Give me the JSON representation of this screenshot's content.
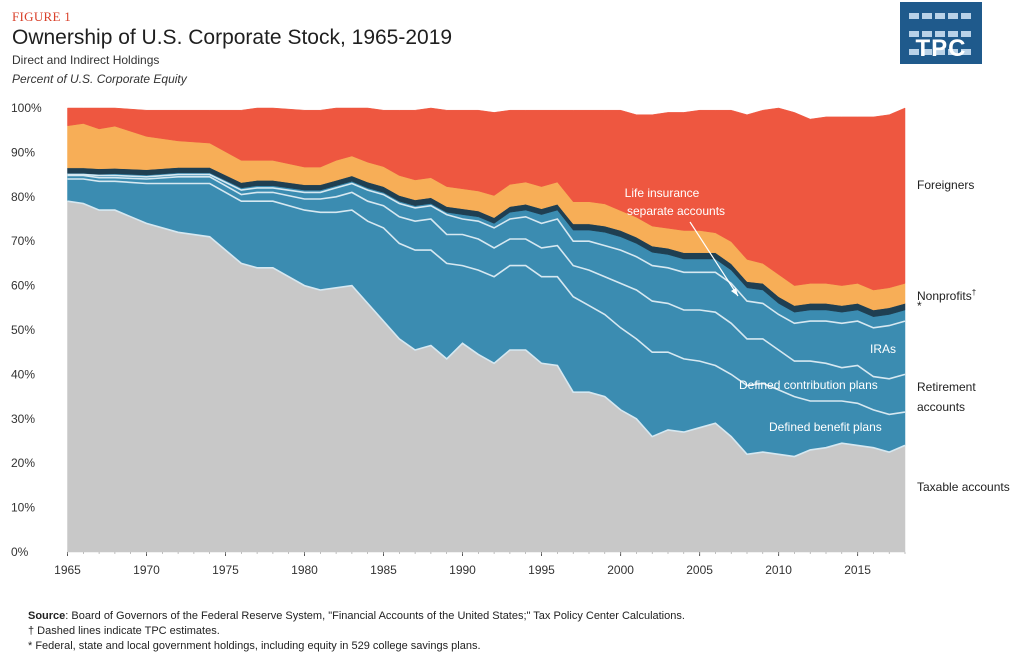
{
  "header": {
    "figure_label": "FIGURE 1",
    "title": "Ownership of U.S. Corporate Stock, 1965-2019",
    "subtitle": "Direct and Indirect Holdings",
    "unit_label": "Percent of U.S. Corporate Equity"
  },
  "logo": {
    "text": "TPC",
    "color": "#1f5a8c"
  },
  "chart_data": {
    "type": "area",
    "stacked": true,
    "x": [
      1965,
      1966,
      1967,
      1968,
      1970,
      1972,
      1974,
      1976,
      1977,
      1978,
      1980,
      1981,
      1982,
      1983,
      1984,
      1985,
      1986,
      1987,
      1988,
      1989,
      1990,
      1991,
      1992,
      1993,
      1994,
      1995,
      1996,
      1997,
      1998,
      1999,
      2000,
      2001,
      2002,
      2003,
      2004,
      2005,
      2006,
      2007,
      2008,
      2009,
      2010,
      2011,
      2012,
      2013,
      2014,
      2015,
      2016,
      2017,
      2018
    ],
    "xlim": [
      1964.4,
      2018
    ],
    "ylim": [
      0,
      100
    ],
    "yticks": [
      "0%",
      "10%",
      "20%",
      "30%",
      "40%",
      "50%",
      "60%",
      "70%",
      "80%",
      "90%",
      "100%"
    ],
    "xticks": [
      "1965",
      "1970",
      "1975",
      "1980",
      "1985",
      "1990",
      "1995",
      "2000",
      "2005",
      "2010",
      "2015"
    ],
    "series": [
      {
        "name": "Taxable accounts",
        "color": "#c8c8c8",
        "values": [
          79,
          78.5,
          77,
          77,
          74,
          72,
          71,
          65,
          64,
          64,
          60,
          59,
          59.5,
          60,
          56,
          52,
          48,
          45.5,
          46.5,
          43.5,
          47,
          44.5,
          42.5,
          45.5,
          45.5,
          42.5,
          42,
          36,
          36,
          35,
          32,
          30,
          26,
          27.5,
          27,
          28,
          29,
          26,
          22,
          22.5,
          22,
          21.5,
          23,
          23.5,
          24.5,
          24,
          23.5,
          22.5,
          24
        ]
      },
      {
        "name": "Defined benefit plans",
        "color": "#3b8cb1",
        "values": [
          5,
          5.5,
          6.5,
          6.5,
          9,
          11,
          12,
          14,
          15,
          15,
          17,
          17.5,
          17,
          17,
          18.5,
          21,
          21.5,
          22.5,
          21.5,
          21.5,
          17.5,
          19,
          19.5,
          19,
          19,
          19.5,
          20,
          21.5,
          19.5,
          18.5,
          18.5,
          18,
          19,
          17.5,
          16.5,
          15,
          13,
          14,
          15.5,
          15.5,
          14.5,
          13.5,
          11,
          10.5,
          9.5,
          9.5,
          8.5,
          8.5,
          7.5
        ]
      },
      {
        "name": "Defined contribution plans",
        "color": "#3b8cb1",
        "values": [
          0.8,
          0.8,
          0.8,
          0.8,
          1.0,
          1.5,
          1.5,
          1.5,
          2,
          2,
          2.5,
          3,
          3.5,
          4,
          4.5,
          5,
          6,
          6.5,
          7,
          6.5,
          7,
          7,
          6.5,
          6,
          6,
          6.5,
          7,
          7,
          8,
          8.5,
          10,
          11,
          11.5,
          11,
          11,
          11.5,
          12,
          11.5,
          10.5,
          10,
          9,
          8,
          9,
          8.5,
          7.5,
          8.5,
          7.5,
          8,
          8.5
        ]
      },
      {
        "name": "IRAs",
        "color": "#3b8cb1",
        "values": [
          0.2,
          0.2,
          0.5,
          0.5,
          0.5,
          0.5,
          0.5,
          1,
          1,
          1,
          1.5,
          1.5,
          2,
          2,
          2.5,
          2.5,
          3,
          3,
          3,
          4.5,
          3.5,
          4,
          4.5,
          4.5,
          5,
          5.5,
          6,
          5.5,
          6.5,
          7,
          7.5,
          7.5,
          8,
          8,
          8.5,
          8.5,
          9,
          9,
          8.5,
          8,
          8,
          8.5,
          9,
          9.5,
          10,
          10,
          11,
          12,
          12
        ]
      },
      {
        "name": "Life insurance separate accounts",
        "color": "#3b8cb1",
        "values": [
          0.3,
          0.3,
          0.3,
          0.4,
          0.4,
          0.4,
          0.4,
          0.5,
          0.5,
          0.5,
          0.5,
          0.5,
          0.5,
          0.5,
          0.5,
          0.5,
          0.5,
          0.5,
          0.5,
          0.5,
          1,
          1,
          1,
          1.5,
          1.5,
          2,
          2,
          2.5,
          2.5,
          3,
          3,
          3,
          3,
          3,
          3,
          3,
          3,
          3,
          3,
          3,
          2.5,
          2.5,
          2.5,
          2.5,
          2.5,
          2.5,
          2.5,
          2.5,
          2.5
        ]
      },
      {
        "name": "*",
        "color": "#1f3f52",
        "values": [
          1.2,
          1.2,
          1.2,
          1.2,
          1.2,
          1.2,
          1.2,
          1.2,
          1.2,
          1.2,
          1.2,
          1.2,
          1.2,
          1.2,
          1.3,
          1.3,
          1.3,
          1.3,
          1.3,
          1.3,
          1.3,
          1.3,
          1.3,
          1.3,
          1.3,
          1.3,
          1.3,
          1.4,
          1.4,
          1.4,
          1.4,
          1.4,
          1.4,
          1.4,
          1.4,
          1.4,
          1.4,
          1.4,
          1.4,
          1.5,
          1.5,
          1.5,
          1.5,
          1.5,
          1.5,
          1.5,
          1.5,
          1.5,
          1.5
        ]
      },
      {
        "name": "Nonprofits†",
        "color": "#f7ae57",
        "values": [
          9.5,
          10,
          9,
          9.5,
          7.5,
          6,
          5.5,
          5,
          4.5,
          4.5,
          4,
          4,
          4.5,
          4.5,
          4.5,
          4.5,
          4.5,
          4.5,
          4.5,
          4.5,
          4.5,
          4.5,
          5,
          5,
          5,
          5,
          5,
          5,
          5,
          5,
          4.5,
          4.5,
          4.5,
          4.5,
          5,
          5,
          4.5,
          5,
          5,
          4.5,
          5,
          4.5,
          4.5,
          4.5,
          4.5,
          4.5,
          4.5,
          4.5,
          4.5
        ]
      },
      {
        "name": "Foreigners",
        "color": "#ee5740",
        "values": [
          4,
          3.5,
          4.7,
          4.1,
          5.9,
          6.9,
          7.4,
          11.3,
          11.8,
          11.8,
          12.8,
          12.8,
          11.8,
          10.8,
          12.2,
          12.7,
          14.7,
          15.7,
          15.7,
          17.2,
          17.7,
          18.2,
          18.7,
          16.7,
          16.2,
          17.2,
          16.2,
          20.6,
          20.6,
          21.1,
          22.6,
          23.1,
          25.1,
          26.1,
          26.6,
          27.1,
          27.6,
          29.6,
          32.6,
          34.5,
          37.5,
          39.0,
          37.0,
          37.5,
          38.0,
          37.5,
          39.0,
          39.0,
          39.5
        ]
      }
    ],
    "line_color": "#d6e8f1",
    "inner_labels": {
      "life_insurance_line1": "Life insurance",
      "life_insurance_line2": "separate accounts",
      "iras": "IRAs",
      "dc": "Defined contribution plans",
      "db": "Defined benefit plans"
    },
    "side_labels": {
      "foreigners": "Foreigners",
      "nonprofits": "Nonprofits",
      "nonprofits_mark": "†",
      "government": "*",
      "retirement_line1": "Retirement",
      "retirement_line2": "accounts",
      "taxable": "Taxable accounts"
    }
  },
  "footer": {
    "source_label": "Source",
    "source_text": ": Board of Governors of the Federal Reserve System,  \"Financial Accounts of the United States;\" Tax Policy Center Calculations.",
    "note_dagger": "† Dashed lines indicate TPC estimates.",
    "note_star": "* Federal, state and local government holdings, including equity in 529 college savings plans."
  }
}
